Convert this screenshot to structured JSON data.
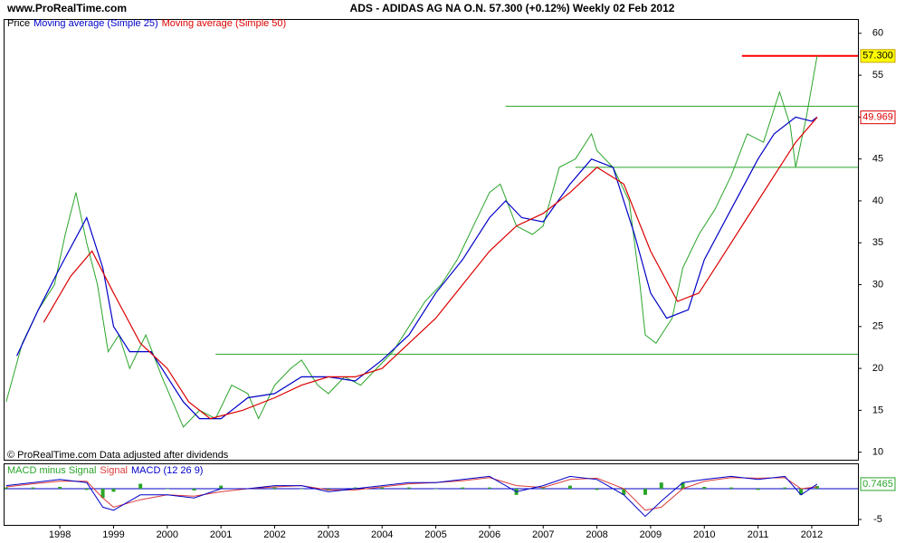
{
  "chart_data": [
    {
      "type": "line",
      "site": "www.ProRealTime.com",
      "title": "ADS - ADIDAS AG NA O.N.    57.300 (+0.12%)    Weekly  02 Feb 2012",
      "annotation": "© ProRealTime.com  Data adjusted after dividends",
      "xlim": [
        1996.97,
        2012.86
      ],
      "xticks": [
        1998,
        1999,
        2000,
        2001,
        2002,
        2003,
        2004,
        2005,
        2006,
        2007,
        2008,
        2009,
        2010,
        2011,
        2012
      ],
      "ylim": [
        9.1,
        61.6
      ],
      "yticks": [
        10,
        15,
        20,
        25,
        30,
        35,
        40,
        45,
        50,
        55,
        60
      ],
      "series": [
        {
          "name": "Price",
          "color": "#2aa52a",
          "last_label": "57.300",
          "x": [
            1997.0,
            1997.3,
            1997.6,
            1997.9,
            1998.1,
            1998.3,
            1998.5,
            1998.7,
            1998.9,
            1999.1,
            1999.3,
            1999.6,
            1999.9,
            2000.1,
            2000.3,
            2000.6,
            2000.9,
            2001.2,
            2001.5,
            2001.7,
            2002.0,
            2002.3,
            2002.5,
            2002.8,
            2003.0,
            2003.3,
            2003.6,
            2003.9,
            2004.2,
            2004.5,
            2004.8,
            2005.1,
            2005.4,
            2005.7,
            2006.0,
            2006.2,
            2006.5,
            2006.8,
            2007.0,
            2007.3,
            2007.6,
            2007.9,
            2008.0,
            2008.3,
            2008.6,
            2008.8,
            2008.9,
            2009.1,
            2009.4,
            2009.6,
            2009.9,
            2010.2,
            2010.5,
            2010.8,
            2011.1,
            2011.4,
            2011.6,
            2011.7,
            2011.9,
            2012.1
          ],
          "values": [
            16,
            23,
            27,
            30,
            36,
            41,
            35,
            30,
            22,
            24,
            20,
            24,
            19,
            16,
            13,
            15,
            14,
            18,
            17,
            14,
            18,
            20,
            21,
            18,
            17,
            19,
            18,
            20,
            22,
            25,
            28,
            30,
            33,
            37,
            41,
            42,
            37,
            36,
            37,
            44,
            45,
            48,
            46,
            44,
            40,
            30,
            24,
            23,
            26,
            32,
            36,
            39,
            43,
            48,
            47,
            53,
            49,
            44,
            50,
            57.3
          ]
        },
        {
          "name": "Moving average (Simple 25)",
          "color": "#0000c8",
          "x": [
            1997.2,
            1997.6,
            1998.0,
            1998.5,
            1998.8,
            1999.0,
            1999.3,
            1999.7,
            2000.0,
            2000.3,
            2000.6,
            2001.0,
            2001.5,
            2002.0,
            2002.5,
            2003.0,
            2003.5,
            2004.0,
            2004.5,
            2005.0,
            2005.5,
            2006.0,
            2006.3,
            2006.6,
            2007.0,
            2007.5,
            2007.9,
            2008.3,
            2008.7,
            2009.0,
            2009.3,
            2009.7,
            2010.0,
            2010.5,
            2011.0,
            2011.3,
            2011.7,
            2012.0,
            2012.1
          ],
          "values": [
            21.5,
            27,
            32,
            38,
            32,
            25,
            22,
            22,
            19,
            16,
            14,
            14,
            16.5,
            17,
            19,
            19,
            18.5,
            21,
            24,
            29,
            33,
            38,
            40,
            38,
            37.5,
            42,
            45,
            44,
            36,
            29,
            26,
            27,
            33,
            39,
            45,
            48,
            50,
            49.5,
            50
          ]
        },
        {
          "name": "Moving average (Simple 50)",
          "color": "#dc0000",
          "x": [
            1997.7,
            1998.2,
            1998.6,
            1999.0,
            1999.5,
            2000.0,
            2000.4,
            2000.8,
            2001.4,
            2002.0,
            2002.5,
            2003.0,
            2003.5,
            2004.0,
            2004.5,
            2005.0,
            2005.5,
            2006.0,
            2006.5,
            2007.0,
            2007.5,
            2008.0,
            2008.5,
            2009.0,
            2009.5,
            2009.9,
            2010.3,
            2010.8,
            2011.3,
            2011.7,
            2012.1
          ],
          "values": [
            25.5,
            31,
            34,
            29,
            23,
            20,
            16,
            14,
            15,
            16.5,
            18,
            19,
            19,
            20,
            23,
            26,
            30,
            34,
            37,
            38.5,
            41,
            44,
            42,
            34,
            28,
            29,
            33,
            38,
            43,
            47,
            49.969
          ]
        }
      ],
      "hlines": [
        {
          "value": 57.3,
          "x": [
            2010.7,
            2012.86
          ],
          "color": "#ff0000"
        },
        {
          "value": 51.3,
          "x": [
            2006.3,
            2012.86
          ],
          "color": "#2aa52a"
        },
        {
          "value": 44,
          "x": [
            2007.6,
            2012.86
          ],
          "color": "#2aa52a"
        },
        {
          "value": 21.7,
          "x": [
            2000.9,
            2012.86
          ],
          "color": "#2aa52a"
        }
      ]
    },
    {
      "type": "macd",
      "xlim": [
        1996.97,
        2012.86
      ],
      "ylim": [
        -5.88,
        3.97
      ],
      "yticks": [
        -5
      ],
      "x": [
        1997.0,
        1997.5,
        1998.0,
        1998.5,
        1998.8,
        1999.0,
        1999.5,
        2000.0,
        2000.5,
        2001.0,
        2001.5,
        2002.0,
        2002.5,
        2003.0,
        2003.5,
        2004.0,
        2004.5,
        2005.0,
        2005.5,
        2006.0,
        2006.5,
        2007.0,
        2007.5,
        2008.0,
        2008.5,
        2008.9,
        2009.2,
        2009.6,
        2010.0,
        2010.5,
        2011.0,
        2011.5,
        2011.8,
        2012.1
      ],
      "series": [
        {
          "name": "MACD minus Signal",
          "color": "#2aa52a",
          "kind": "bar",
          "values": [
            0.2,
            0.2,
            0.3,
            -0.2,
            -1.5,
            -0.5,
            0.8,
            0,
            -0.3,
            0.5,
            0,
            0.2,
            0,
            -0.3,
            0.2,
            0.2,
            0.2,
            0,
            0.2,
            0.2,
            -1,
            0.3,
            0.5,
            -0.2,
            -1,
            -1,
            1,
            1,
            0.3,
            0.2,
            -0.2,
            0.2,
            -1,
            0.45
          ]
        },
        {
          "name": "Signal",
          "color": "#dc3c3c",
          "kind": "line",
          "values": [
            0.3,
            0.8,
            1.2,
            1.2,
            -1.5,
            -3,
            -1.8,
            -1,
            -1.2,
            -0.5,
            0,
            0.3,
            0.5,
            -0.2,
            -0.2,
            0.3,
            0.8,
            1,
            1.3,
            1.8,
            0.5,
            0.2,
            1.5,
            1.7,
            0,
            -3.5,
            -3,
            0,
            1.2,
            1.8,
            1.7,
            1.8,
            0,
            0.3
          ]
        },
        {
          "name": "MACD (12 26 9)",
          "color": "#0000c8",
          "kind": "line",
          "values": [
            0.5,
            1,
            1.5,
            1,
            -3,
            -3.5,
            -1,
            -1,
            -1.5,
            0,
            0,
            0.5,
            0.5,
            -0.5,
            0,
            0.5,
            1,
            1,
            1.5,
            2,
            -0.5,
            0.5,
            2,
            1.5,
            -1,
            -4.5,
            -2,
            1,
            1.5,
            2,
            1.5,
            2,
            -1,
            0.7465
          ]
        }
      ]
    }
  ]
}
